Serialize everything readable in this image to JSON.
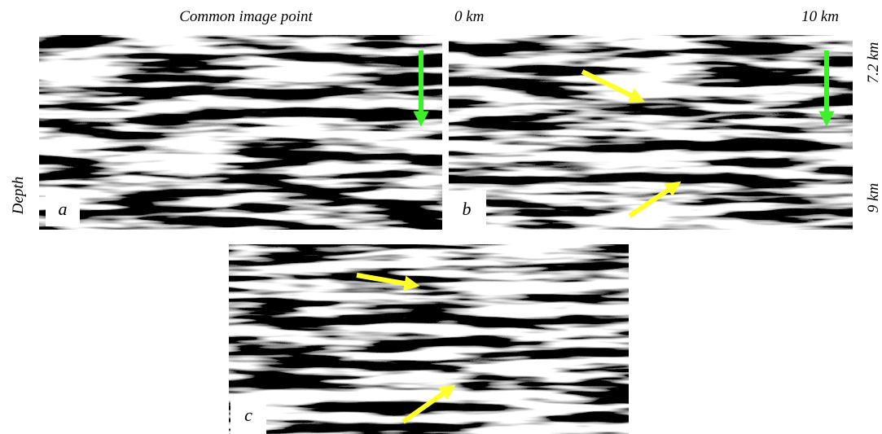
{
  "figure": {
    "top_label": "Common image point",
    "x_start": "0 km",
    "x_end": "10 km",
    "depth_top": "7.2 km",
    "depth_bottom": "9 km",
    "y_label": "Depth",
    "panels": [
      {
        "label": "a"
      },
      {
        "label": "b"
      },
      {
        "label": "c"
      }
    ]
  }
}
